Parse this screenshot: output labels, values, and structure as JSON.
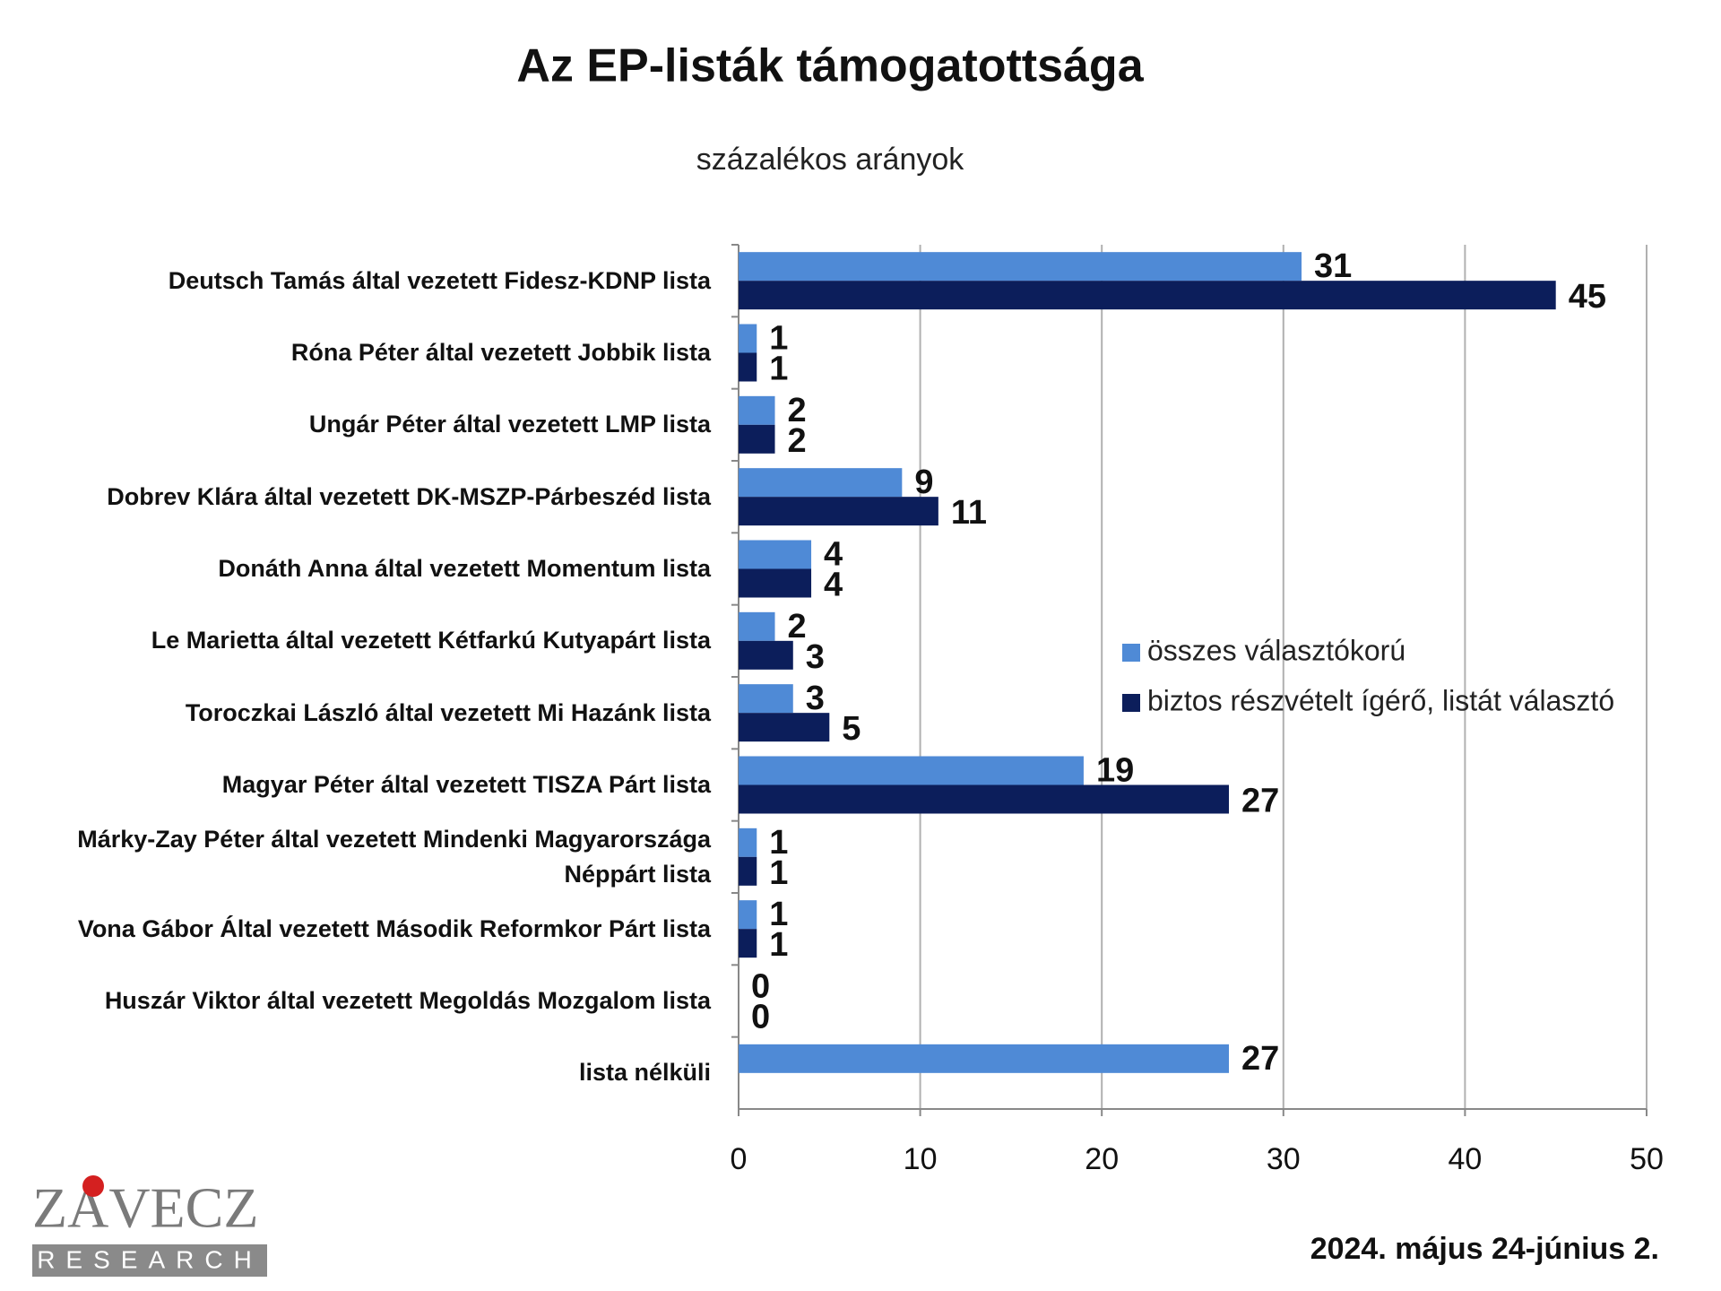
{
  "chart_data": {
    "type": "bar",
    "orientation": "horizontal",
    "title": "Az EP-listák támogatottsága",
    "subtitle": "százalékos arányok",
    "categories": [
      "Deutsch Tamás által vezetett Fidesz-KDNP lista",
      "Róna Péter által vezetett Jobbik lista",
      "Ungár Péter által vezetett LMP lista",
      "Dobrev Klára által vezetett DK-MSZP-Párbeszéd lista",
      "Donáth Anna által vezetett Momentum lista",
      "Le Marietta által vezetett Kétfarkú Kutyapárt lista",
      "Toroczkai László által vezetett Mi Hazánk lista",
      "Magyar Péter által vezetett TISZA Párt lista",
      "Márky-Zay Péter által vezetett Mindenki Magyarországa Néppárt lista",
      "Vona Gábor Által vezetett Második Reformkor Párt lista",
      "Huszár Viktor által vezetett Megoldás Mozgalom lista",
      "lista nélküli"
    ],
    "series": [
      {
        "name": "összes választókorú",
        "color": "#4f8ad6",
        "values": [
          31,
          1,
          2,
          9,
          4,
          2,
          3,
          19,
          1,
          1,
          0,
          27
        ]
      },
      {
        "name": "biztos részvételt ígérő, listát választó",
        "color": "#0c1e5b",
        "values": [
          45,
          1,
          2,
          11,
          4,
          3,
          5,
          27,
          1,
          1,
          0,
          null
        ]
      }
    ],
    "xlim": [
      0,
      50
    ],
    "xticks": [
      0,
      10,
      20,
      30,
      40,
      50
    ],
    "grid": true,
    "legend": "right"
  },
  "date": "2024. május 24-június 2.",
  "logo": {
    "name": "ZÁVECZ",
    "tagline": "RESEARCH"
  }
}
